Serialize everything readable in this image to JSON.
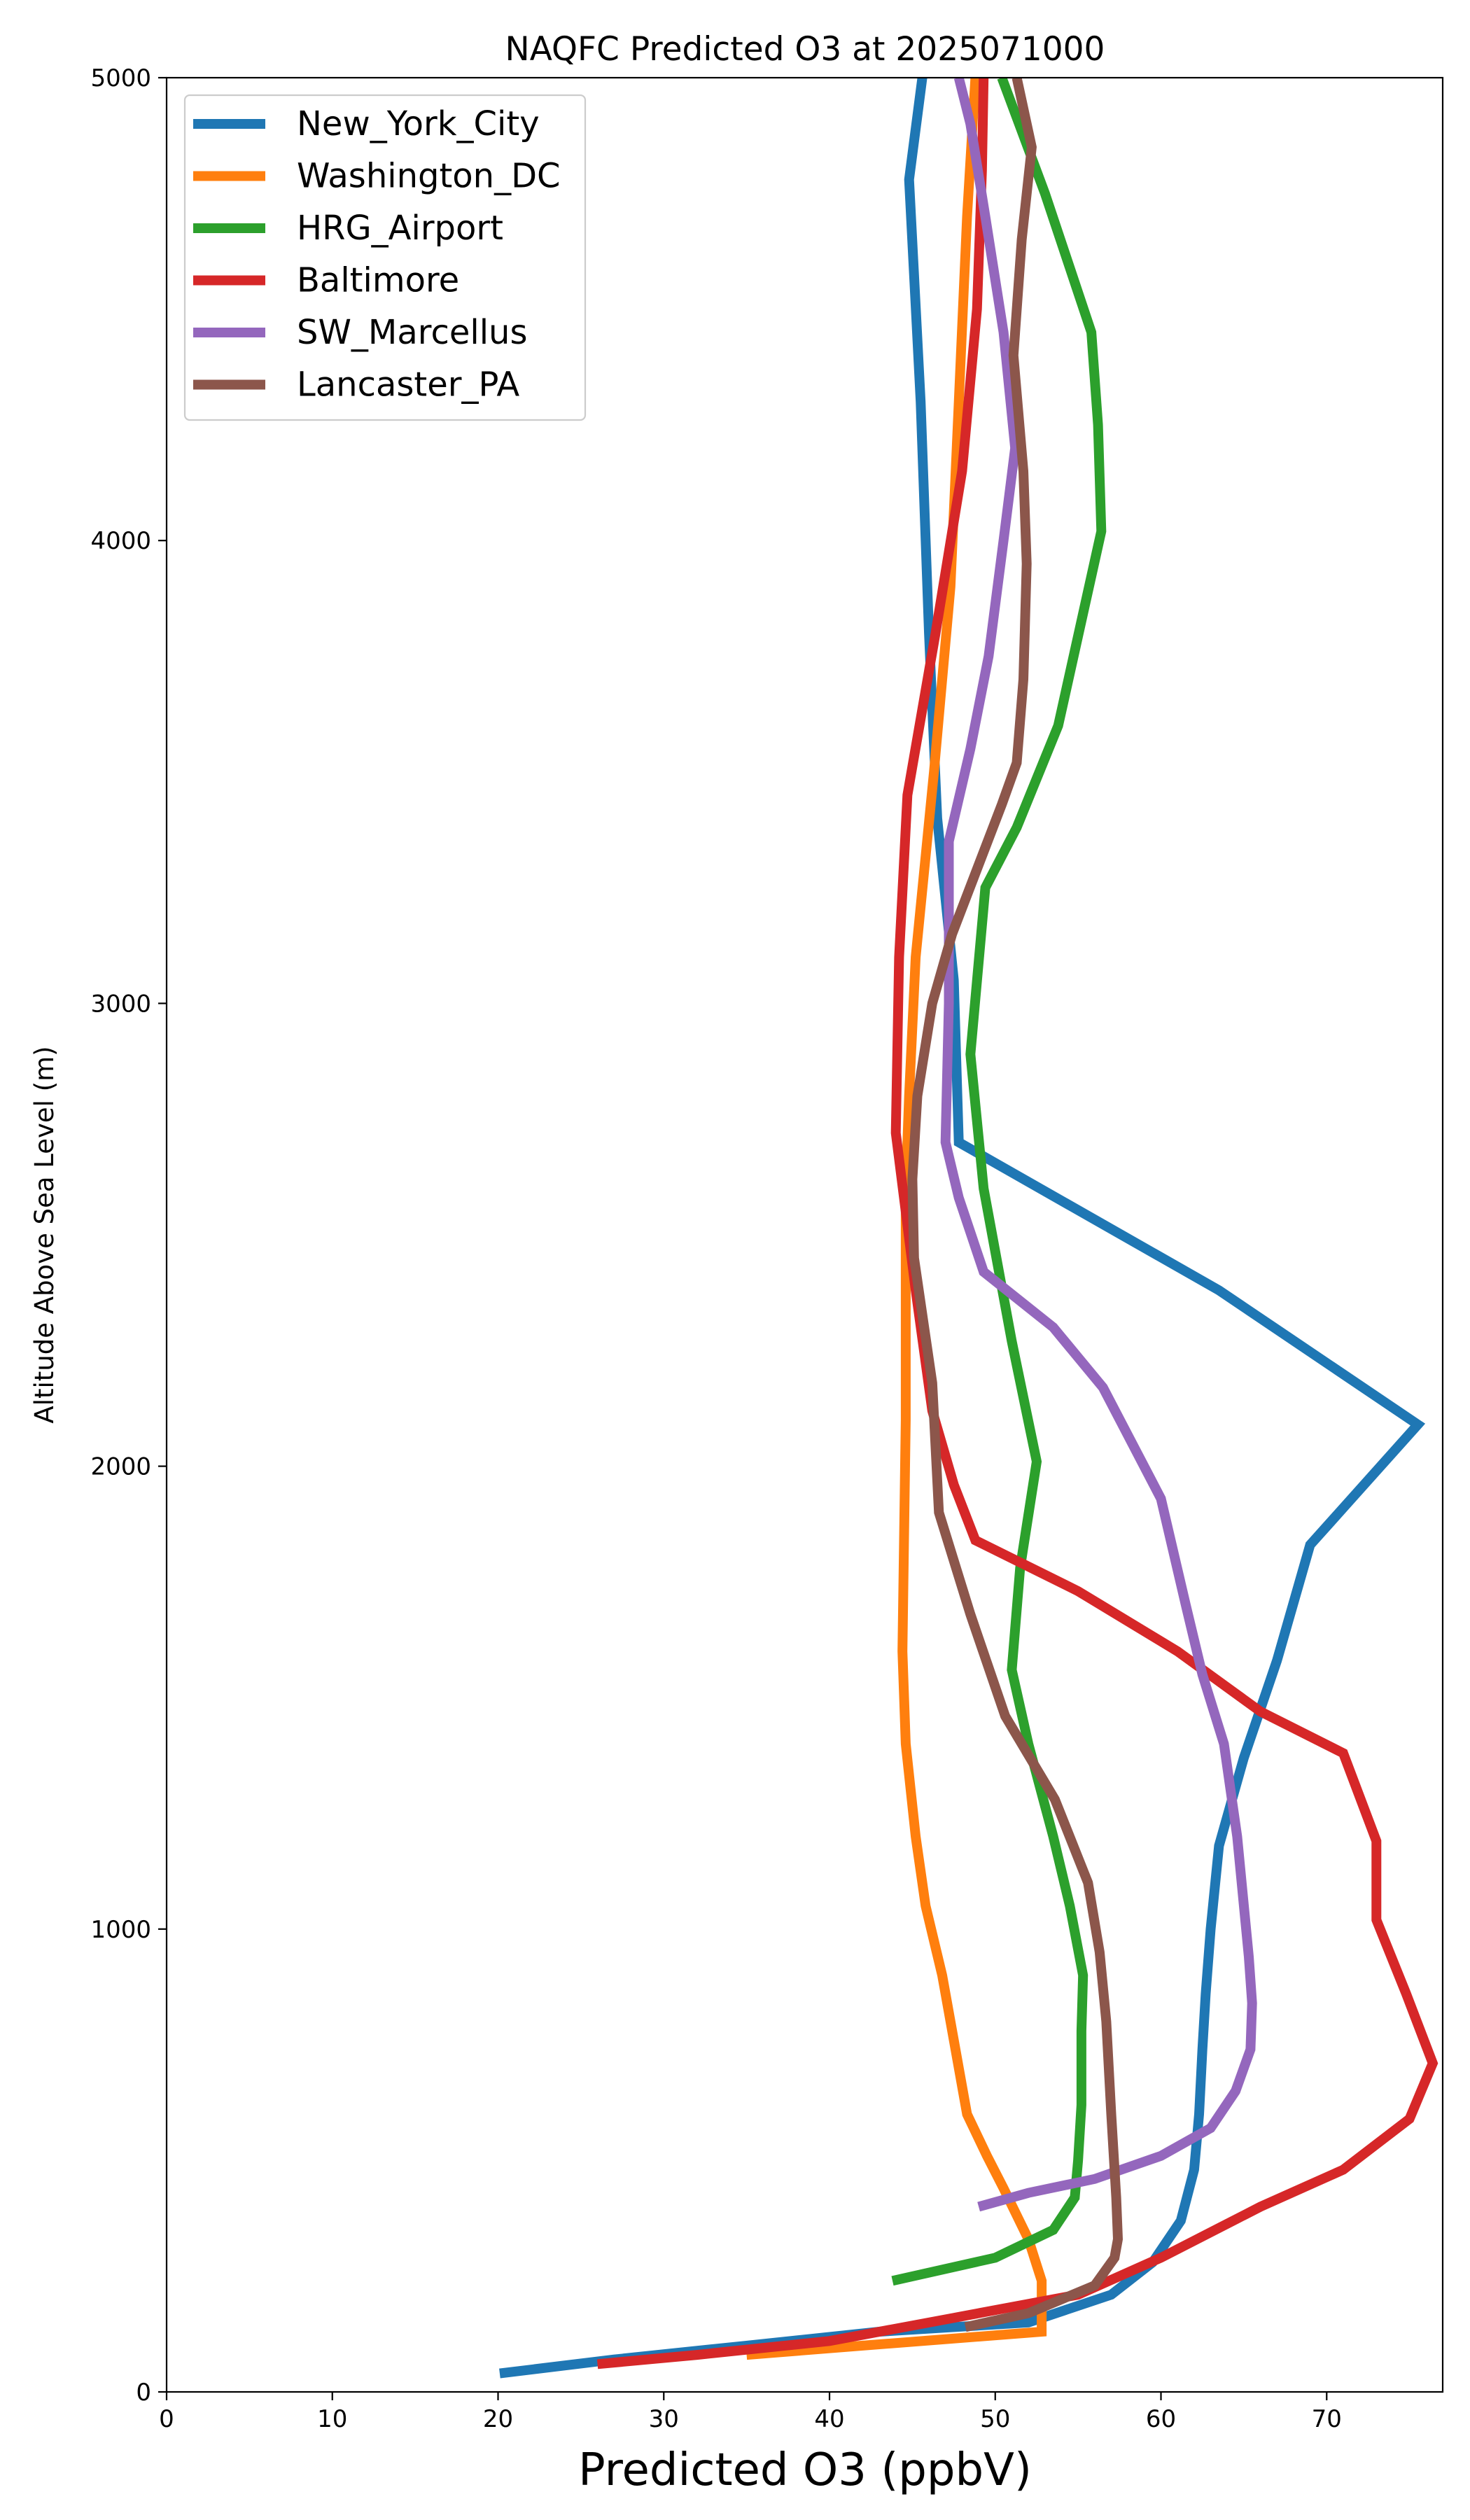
{
  "chart_data": {
    "type": "line",
    "title": "NAQFC Predicted O3 at 2025071000",
    "xlabel": "Predicted O3 (ppbV)",
    "ylabel": "Altitude Above Sea Level (m)",
    "xlim": [
      0,
      77
    ],
    "ylim": [
      0,
      5000
    ],
    "xticks": [
      0,
      10,
      20,
      30,
      40,
      50,
      60,
      70
    ],
    "yticks": [
      0,
      1000,
      2000,
      3000,
      4000,
      5000
    ],
    "grid": false,
    "legend_position": "top-left",
    "series": [
      {
        "name": "New_York_City",
        "color": "#1f77b4",
        "points": [
          [
            20.1,
            40
          ],
          [
            27,
            70
          ],
          [
            35,
            100
          ],
          [
            43,
            130
          ],
          [
            52,
            150
          ],
          [
            57,
            210
          ],
          [
            59.5,
            280
          ],
          [
            61.2,
            370
          ],
          [
            62,
            480
          ],
          [
            62.3,
            600
          ],
          [
            62.5,
            740
          ],
          [
            62.7,
            860
          ],
          [
            63,
            1000
          ],
          [
            63.5,
            1180
          ],
          [
            65,
            1370
          ],
          [
            67,
            1580
          ],
          [
            69,
            1830
          ],
          [
            75.5,
            2090
          ],
          [
            63.5,
            2380
          ],
          [
            47.8,
            2700
          ],
          [
            47.5,
            3050
          ],
          [
            46.5,
            3400
          ],
          [
            46,
            3800
          ],
          [
            45.5,
            4300
          ],
          [
            44.8,
            4780
          ],
          [
            45.6,
            5000
          ]
        ]
      },
      {
        "name": "Washington_DC",
        "color": "#ff7f0e",
        "points": [
          [
            35,
            80
          ],
          [
            42,
            100
          ],
          [
            52.8,
            130
          ],
          [
            52.8,
            240
          ],
          [
            52,
            330
          ],
          [
            50.5,
            440
          ],
          [
            49.5,
            510
          ],
          [
            48.3,
            600
          ],
          [
            47.5,
            760
          ],
          [
            46.8,
            900
          ],
          [
            45.8,
            1050
          ],
          [
            45.2,
            1200
          ],
          [
            44.6,
            1400
          ],
          [
            44.4,
            1600
          ],
          [
            44.6,
            2100
          ],
          [
            44.6,
            2600
          ],
          [
            44.8,
            2800
          ],
          [
            45.2,
            3100
          ],
          [
            46.3,
            3500
          ],
          [
            47.3,
            3900
          ],
          [
            47.8,
            4300
          ],
          [
            48.3,
            4700
          ],
          [
            48.8,
            5000
          ]
        ]
      },
      {
        "name": "HRG_Airport",
        "color": "#2ca02c",
        "points": [
          [
            43.8,
            240
          ],
          [
            50,
            290
          ],
          [
            53.5,
            350
          ],
          [
            54.8,
            420
          ],
          [
            55,
            500
          ],
          [
            55.2,
            620
          ],
          [
            55.2,
            780
          ],
          [
            55.3,
            900
          ],
          [
            54.5,
            1050
          ],
          [
            53.5,
            1200
          ],
          [
            52,
            1400
          ],
          [
            51,
            1560
          ],
          [
            51.5,
            1780
          ],
          [
            52.5,
            2010
          ],
          [
            51,
            2270
          ],
          [
            49.3,
            2600
          ],
          [
            48.5,
            2890
          ],
          [
            49.4,
            3250
          ],
          [
            51.3,
            3380
          ],
          [
            53.8,
            3600
          ],
          [
            56.4,
            4020
          ],
          [
            56.2,
            4250
          ],
          [
            55.8,
            4450
          ],
          [
            53,
            4750
          ],
          [
            50.4,
            5000
          ]
        ]
      },
      {
        "name": "Baltimore",
        "color": "#d62728",
        "points": [
          [
            26,
            60
          ],
          [
            32,
            80
          ],
          [
            40,
            110
          ],
          [
            47.5,
            160
          ],
          [
            55,
            210
          ],
          [
            60,
            290
          ],
          [
            66,
            400
          ],
          [
            71,
            480
          ],
          [
            75,
            590
          ],
          [
            76.4,
            710
          ],
          [
            74.8,
            860
          ],
          [
            73,
            1020
          ],
          [
            73,
            1190
          ],
          [
            71,
            1380
          ],
          [
            66,
            1470
          ],
          [
            61,
            1600
          ],
          [
            55,
            1730
          ],
          [
            48.8,
            1840
          ],
          [
            47.5,
            1960
          ],
          [
            46.2,
            2120
          ],
          [
            45.2,
            2380
          ],
          [
            44,
            2720
          ],
          [
            44.2,
            3100
          ],
          [
            44.7,
            3450
          ],
          [
            46.4,
            3800
          ],
          [
            48,
            4150
          ],
          [
            48.9,
            4500
          ],
          [
            49.2,
            4800
          ],
          [
            49.3,
            5000
          ]
        ]
      },
      {
        "name": "SW_Marcellus",
        "color": "#9467bd",
        "points": [
          [
            49,
            400
          ],
          [
            52,
            430
          ],
          [
            56,
            460
          ],
          [
            60,
            510
          ],
          [
            63,
            570
          ],
          [
            64.5,
            650
          ],
          [
            65.4,
            740
          ],
          [
            65.5,
            840
          ],
          [
            65.3,
            940
          ],
          [
            64.6,
            1200
          ],
          [
            63.8,
            1400
          ],
          [
            62.5,
            1550
          ],
          [
            61.5,
            1700
          ],
          [
            60,
            1930
          ],
          [
            56.5,
            2170
          ],
          [
            53.5,
            2300
          ],
          [
            49.3,
            2420
          ],
          [
            47.8,
            2580
          ],
          [
            47,
            2700
          ],
          [
            47.2,
            3000
          ],
          [
            47.2,
            3350
          ],
          [
            48.5,
            3550
          ],
          [
            49.6,
            3750
          ],
          [
            50.5,
            4000
          ],
          [
            51.2,
            4200
          ],
          [
            50.5,
            4450
          ],
          [
            49.4,
            4700
          ],
          [
            48.5,
            4900
          ],
          [
            47.8,
            5000
          ]
        ]
      },
      {
        "name": "Lancaster_PA",
        "color": "#8c564b",
        "points": [
          [
            48.2,
            140
          ],
          [
            52,
            170
          ],
          [
            56,
            230
          ],
          [
            57.2,
            290
          ],
          [
            57.4,
            330
          ],
          [
            57.3,
            420
          ],
          [
            57,
            600
          ],
          [
            56.7,
            800
          ],
          [
            56.3,
            950
          ],
          [
            55.6,
            1100
          ],
          [
            53.6,
            1280
          ],
          [
            50.6,
            1460
          ],
          [
            48.5,
            1680
          ],
          [
            46.6,
            1900
          ],
          [
            46.2,
            2180
          ],
          [
            45.1,
            2450
          ],
          [
            45,
            2620
          ],
          [
            45.3,
            2800
          ],
          [
            46.2,
            3000
          ],
          [
            47.4,
            3150
          ],
          [
            50.4,
            3430
          ],
          [
            51.3,
            3520
          ],
          [
            51.7,
            3700
          ],
          [
            51.9,
            3950
          ],
          [
            51.7,
            4150
          ],
          [
            51.1,
            4400
          ],
          [
            51.6,
            4650
          ],
          [
            52.2,
            4850
          ],
          [
            51.3,
            5000
          ]
        ]
      }
    ]
  }
}
